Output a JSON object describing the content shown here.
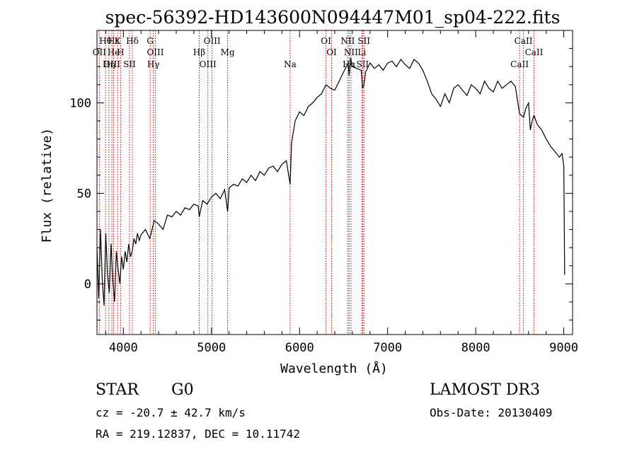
{
  "chart_data": {
    "type": "line",
    "title": "spec-56392-HD143600N094447M01_sp04-222.fits",
    "xlabel": "Wavelength (Å)",
    "ylabel": "Flux (relative)",
    "xlim": [
      3700,
      9100
    ],
    "ylim": [
      -28,
      140
    ],
    "xticks": [
      4000,
      5000,
      6000,
      7000,
      8000,
      9000
    ],
    "yticks": [
      0,
      50,
      100
    ],
    "grid": false,
    "series": [
      {
        "x": [
          3700,
          3720,
          3740,
          3760,
          3780,
          3800,
          3820,
          3840,
          3860,
          3880,
          3900,
          3920,
          3940,
          3960,
          3980,
          4000,
          4020,
          4040,
          4060,
          4080,
          4100,
          4120,
          4140,
          4160,
          4180,
          4200,
          4250,
          4300,
          4350,
          4400,
          4450,
          4500,
          4550,
          4600,
          4650,
          4700,
          4750,
          4800,
          4850,
          4861,
          4900,
          4950,
          5000,
          5050,
          5100,
          5150,
          5183,
          5200,
          5250,
          5300,
          5350,
          5400,
          5450,
          5500,
          5550,
          5600,
          5650,
          5700,
          5750,
          5800,
          5850,
          5893,
          5910,
          5930,
          5950,
          6000,
          6050,
          6100,
          6150,
          6200,
          6250,
          6300,
          6350,
          6400,
          6450,
          6500,
          6550,
          6563,
          6580,
          6600,
          6650,
          6700,
          6716,
          6731,
          6750,
          6800,
          6850,
          6900,
          6950,
          7000,
          7050,
          7100,
          7150,
          7200,
          7250,
          7300,
          7350,
          7400,
          7450,
          7500,
          7550,
          7600,
          7650,
          7700,
          7750,
          7800,
          7850,
          7900,
          7950,
          8000,
          8050,
          8100,
          8150,
          8200,
          8250,
          8300,
          8350,
          8400,
          8450,
          8498,
          8542,
          8570,
          8600,
          8620,
          8640,
          8662,
          8700,
          8750,
          8800,
          8850,
          8900,
          8950,
          8980,
          9000,
          9010
        ],
        "y": [
          20,
          -8,
          30,
          2,
          -12,
          28,
          5,
          -5,
          22,
          2,
          -10,
          18,
          8,
          0,
          15,
          8,
          18,
          12,
          22,
          15,
          18,
          25,
          22,
          28,
          24,
          27,
          30,
          25,
          35,
          33,
          30,
          38,
          37,
          40,
          38,
          42,
          41,
          44,
          43,
          37,
          46,
          44,
          48,
          50,
          47,
          52,
          40,
          53,
          55,
          54,
          58,
          56,
          60,
          57,
          62,
          60,
          64,
          65,
          62,
          66,
          68,
          55,
          78,
          84,
          90,
          95,
          93,
          98,
          100,
          103,
          105,
          110,
          108,
          107,
          112,
          117,
          122,
          115,
          125,
          120,
          119,
          118,
          108,
          110,
          117,
          122,
          119,
          121,
          118,
          122,
          123,
          120,
          124,
          121,
          119,
          124,
          122,
          118,
          112,
          105,
          102,
          98,
          105,
          100,
          108,
          110,
          107,
          104,
          110,
          108,
          105,
          112,
          108,
          106,
          112,
          108,
          110,
          112,
          109,
          94,
          92,
          97,
          100,
          85,
          90,
          93,
          88,
          85,
          80,
          76,
          73,
          70,
          72,
          65,
          5
        ]
      }
    ],
    "line_markers": [
      {
        "label": "Hθ",
        "x": 3797
      },
      {
        "label": "OII",
        "x": 3727
      },
      {
        "label": "OIII",
        "x": 3869
      },
      {
        "label": "Hε",
        "x": 3889
      },
      {
        "label": "He",
        "x": 3889
      },
      {
        "label": "Hη",
        "x": 3835
      },
      {
        "label": "K",
        "x": 3934
      },
      {
        "label": "H",
        "x": 3968
      },
      {
        "label": "SII",
        "x": 4069
      },
      {
        "label": "Hδ",
        "x": 4102
      },
      {
        "label": "OIII",
        "x": 4363
      },
      {
        "label": "Hγ",
        "x": 4340
      },
      {
        "label": "G",
        "x": 4304
      },
      {
        "label": "Hβ",
        "x": 4861
      },
      {
        "label": "OIII",
        "x": 4959
      },
      {
        "label": "OIII",
        "x": 5007
      },
      {
        "label": "Mg",
        "x": 5183
      },
      {
        "label": "Na",
        "x": 5893
      },
      {
        "label": "OI",
        "x": 6300
      },
      {
        "label": "OI",
        "x": 6364
      },
      {
        "label": "Hα",
        "x": 6563
      },
      {
        "label": "NII",
        "x": 6548
      },
      {
        "label": "NII",
        "x": 6584
      },
      {
        "label": "SII",
        "x": 6716
      },
      {
        "label": "SII",
        "x": 6731
      },
      {
        "label": "Li",
        "x": 6708
      },
      {
        "label": "CaII",
        "x": 8498
      },
      {
        "label": "CaII",
        "x": 8542
      },
      {
        "label": "CaII",
        "x": 8662
      }
    ]
  },
  "info": {
    "class": "STAR",
    "subclass": "G0",
    "survey": "LAMOST DR3",
    "cz": "cz = -20.7 ± 42.7 km/s",
    "obsdate": "Obs-Date: 20130409",
    "radec": "RA = 219.12837, DEC =  10.11742"
  },
  "colors": {
    "line": "#000000",
    "marker": "#cc0000",
    "background": "#ffffff"
  }
}
